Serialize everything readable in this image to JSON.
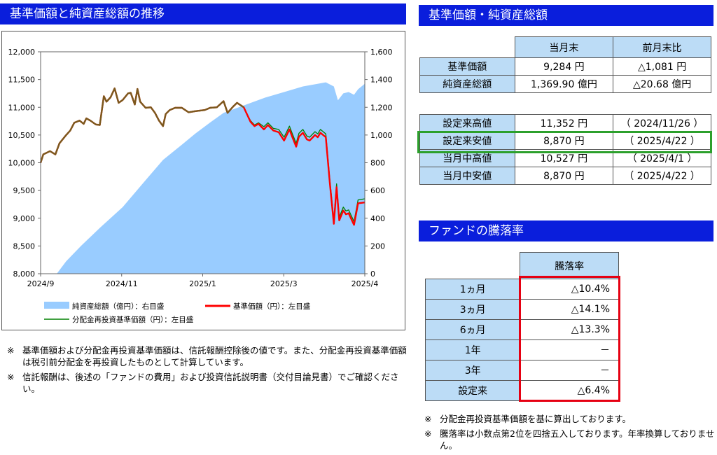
{
  "left_title": "基準価額と純資産総額の推移",
  "right_title": "基準価額・純資産総額",
  "perf_title": "ファンドの騰落率",
  "summary": {
    "headers": [
      "当月末",
      "前月末比"
    ],
    "rows": [
      {
        "label": "基準価額",
        "value": "9,284 円",
        "change": "△1,081 円"
      },
      {
        "label": "純資産総額",
        "value": "1,369.90 億円",
        "change": "△20.68 億円"
      }
    ]
  },
  "highs": [
    {
      "label": "設定来高値",
      "value": "11,352 円",
      "date": "（ 2024/11/26 ）"
    },
    {
      "label": "設定来安値",
      "value": "8,870 円",
      "date": "（ 2025/4/22 ）"
    },
    {
      "label": "当月中高値",
      "value": "10,527 円",
      "date": "（ 2025/4/1 ）"
    },
    {
      "label": "当月中安値",
      "value": "8,870 円",
      "date": "（ 2025/4/22 ）"
    }
  ],
  "performance": {
    "header": "騰落率",
    "rows": [
      {
        "label": "1ヵ月",
        "value": "△10.4%"
      },
      {
        "label": "3ヵ月",
        "value": "△14.1%"
      },
      {
        "label": "6ヵ月",
        "value": "△13.3%"
      },
      {
        "label": "1年",
        "value": "－"
      },
      {
        "label": "3年",
        "value": "－"
      },
      {
        "label": "設定来",
        "value": "△6.4%"
      }
    ]
  },
  "notes_left": [
    {
      "mark": "※",
      "text": "基準価額および分配金再投資基準価額は、信託報酬控除後の値です。また、分配金再投資基準価額は税引前分配金を再投資したものとして計算しています。"
    },
    {
      "mark": "※",
      "text": "信託報酬は、後述の「ファンドの費用」および投資信託説明書（交付目論見書）でご確認ください。"
    }
  ],
  "notes_right": [
    {
      "mark": "※",
      "text": "分配金再投資基準価額を基に算出しております。"
    },
    {
      "mark": "※",
      "text": "騰落率は小数点第2位を四捨五入しております。年率換算しておりません。"
    }
  ],
  "colors": {
    "header_bg": "#0a1edc",
    "cell_bg": "#bcdcf6",
    "area": "#99ccff",
    "nav_line": "#ff0000",
    "reinvest_line": "#008000",
    "highlight_green": "#2ca02c",
    "highlight_red": "#e60012"
  },
  "chart_data": {
    "type": "line",
    "x_ticks": [
      "2024/9",
      "2024/11",
      "2025/1",
      "2025/3",
      "2025/4"
    ],
    "y_left_ticks": [
      "8,000",
      "8,500",
      "9,000",
      "9,500",
      "10,000",
      "10,500",
      "11,000",
      "11,500",
      "12,000"
    ],
    "y_right_ticks": [
      "0",
      "200",
      "400",
      "600",
      "800",
      "1,000",
      "1,200",
      "1,400",
      "1,600"
    ],
    "ylim_left": [
      8000,
      12000
    ],
    "ylim_right": [
      0,
      1600
    ],
    "x_range": [
      "2024-09-01",
      "2025-04-30"
    ],
    "legend": [
      {
        "name": "純資産総額（億円）：右目盛",
        "kind": "area"
      },
      {
        "name": "基準価額（円）：左目盛",
        "kind": "line-red"
      },
      {
        "name": "分配金再投資基準価額（円）：左目盛",
        "kind": "line-green"
      }
    ],
    "series": [
      {
        "name": "純資産総額（億円）：右目盛",
        "axis": "right",
        "points": [
          [
            "2024-09-13",
            0
          ],
          [
            "2024-09-20",
            90
          ],
          [
            "2024-10-01",
            200
          ],
          [
            "2024-10-15",
            330
          ],
          [
            "2024-11-01",
            480
          ],
          [
            "2024-11-15",
            640
          ],
          [
            "2024-12-01",
            820
          ],
          [
            "2024-12-15",
            930
          ],
          [
            "2024-12-25",
            1010
          ],
          [
            "2025-01-05",
            1090
          ],
          [
            "2025-01-15",
            1160
          ],
          [
            "2025-02-01",
            1220
          ],
          [
            "2025-02-15",
            1270
          ],
          [
            "2025-03-01",
            1310
          ],
          [
            "2025-03-15",
            1350
          ],
          [
            "2025-04-01",
            1380
          ],
          [
            "2025-04-07",
            1350
          ],
          [
            "2025-04-10",
            1250
          ],
          [
            "2025-04-14",
            1300
          ],
          [
            "2025-04-18",
            1310
          ],
          [
            "2025-04-22",
            1290
          ],
          [
            "2025-04-25",
            1330
          ],
          [
            "2025-04-30",
            1370
          ]
        ]
      },
      {
        "name": "分配金再投資基準価額（円）：左目盛",
        "axis": "left",
        "points": [
          [
            "2024-09-01",
            10000
          ],
          [
            "2024-09-03",
            10150
          ],
          [
            "2024-09-08",
            10210
          ],
          [
            "2024-09-12",
            10150
          ],
          [
            "2024-09-15",
            10350
          ],
          [
            "2024-09-20",
            10500
          ],
          [
            "2024-09-23",
            10580
          ],
          [
            "2024-09-26",
            10720
          ],
          [
            "2024-09-30",
            10760
          ],
          [
            "2024-10-03",
            10700
          ],
          [
            "2024-10-05",
            10800
          ],
          [
            "2024-10-08",
            10760
          ],
          [
            "2024-10-12",
            10690
          ],
          [
            "2024-10-15",
            10680
          ],
          [
            "2024-10-18",
            11200
          ],
          [
            "2024-10-20",
            11100
          ],
          [
            "2024-10-23",
            11180
          ],
          [
            "2024-10-26",
            11340
          ],
          [
            "2024-10-29",
            11080
          ],
          [
            "2024-11-01",
            11130
          ],
          [
            "2024-11-05",
            11250
          ],
          [
            "2024-11-07",
            11260
          ],
          [
            "2024-11-10",
            11050
          ],
          [
            "2024-11-12",
            11330
          ],
          [
            "2024-11-14",
            11100
          ],
          [
            "2024-11-18",
            10990
          ],
          [
            "2024-11-22",
            11000
          ],
          [
            "2024-11-25",
            10900
          ],
          [
            "2024-11-28",
            10760
          ],
          [
            "2024-12-01",
            10660
          ],
          [
            "2024-12-03",
            10880
          ],
          [
            "2024-12-06",
            10950
          ],
          [
            "2024-12-10",
            10990
          ],
          [
            "2024-12-15",
            10990
          ],
          [
            "2024-12-20",
            10910
          ],
          [
            "2024-12-25",
            10930
          ],
          [
            "2025-01-01",
            10950
          ],
          [
            "2025-01-05",
            10990
          ],
          [
            "2025-01-10",
            11000
          ],
          [
            "2025-01-15",
            11110
          ],
          [
            "2025-01-18",
            10900
          ],
          [
            "2025-01-22",
            11010
          ],
          [
            "2025-01-25",
            11080
          ],
          [
            "2025-01-30",
            11000
          ],
          [
            "2025-02-04",
            10760
          ],
          [
            "2025-02-07",
            10680
          ],
          [
            "2025-02-10",
            10720
          ],
          [
            "2025-02-14",
            10650
          ],
          [
            "2025-02-17",
            10720
          ],
          [
            "2025-02-21",
            10620
          ],
          [
            "2025-02-25",
            10600
          ],
          [
            "2025-03-01",
            10460
          ],
          [
            "2025-03-05",
            10660
          ],
          [
            "2025-03-07",
            10530
          ],
          [
            "2025-03-10",
            10350
          ],
          [
            "2025-03-12",
            10530
          ],
          [
            "2025-03-15",
            10600
          ],
          [
            "2025-03-18",
            10480
          ],
          [
            "2025-03-20",
            10460
          ],
          [
            "2025-03-24",
            10560
          ],
          [
            "2025-03-26",
            10520
          ],
          [
            "2025-03-28",
            10600
          ],
          [
            "2025-04-01",
            10520
          ],
          [
            "2025-04-04",
            9700
          ],
          [
            "2025-04-07",
            8960
          ],
          [
            "2025-04-09",
            9620
          ],
          [
            "2025-04-11",
            9020
          ],
          [
            "2025-04-14",
            9200
          ],
          [
            "2025-04-16",
            9130
          ],
          [
            "2025-04-18",
            9150
          ],
          [
            "2025-04-22",
            8940
          ],
          [
            "2025-04-25",
            9330
          ],
          [
            "2025-04-30",
            9350
          ]
        ]
      },
      {
        "name": "基準価額（円）：左目盛",
        "axis": "left",
        "points": [
          [
            "2024-09-01",
            10000
          ],
          [
            "2024-09-03",
            10150
          ],
          [
            "2024-09-08",
            10210
          ],
          [
            "2024-09-12",
            10150
          ],
          [
            "2024-09-15",
            10350
          ],
          [
            "2024-09-20",
            10500
          ],
          [
            "2024-09-23",
            10580
          ],
          [
            "2024-09-26",
            10720
          ],
          [
            "2024-09-30",
            10760
          ],
          [
            "2024-10-03",
            10700
          ],
          [
            "2024-10-05",
            10800
          ],
          [
            "2024-10-08",
            10760
          ],
          [
            "2024-10-12",
            10690
          ],
          [
            "2024-10-15",
            10680
          ],
          [
            "2024-10-18",
            11200
          ],
          [
            "2024-10-20",
            11100
          ],
          [
            "2024-10-23",
            11180
          ],
          [
            "2024-10-26",
            11340
          ],
          [
            "2024-10-29",
            11080
          ],
          [
            "2024-11-01",
            11130
          ],
          [
            "2024-11-05",
            11250
          ],
          [
            "2024-11-07",
            11260
          ],
          [
            "2024-11-10",
            11050
          ],
          [
            "2024-11-12",
            11330
          ],
          [
            "2024-11-14",
            11100
          ],
          [
            "2024-11-18",
            10990
          ],
          [
            "2024-11-22",
            11000
          ],
          [
            "2024-11-25",
            10900
          ],
          [
            "2024-11-28",
            10760
          ],
          [
            "2024-12-01",
            10660
          ],
          [
            "2024-12-03",
            10880
          ],
          [
            "2024-12-06",
            10950
          ],
          [
            "2024-12-10",
            10990
          ],
          [
            "2024-12-15",
            10990
          ],
          [
            "2024-12-20",
            10910
          ],
          [
            "2024-12-25",
            10930
          ],
          [
            "2025-01-01",
            10950
          ],
          [
            "2025-01-05",
            10990
          ],
          [
            "2025-01-10",
            11000
          ],
          [
            "2025-01-15",
            11110
          ],
          [
            "2025-01-18",
            10900
          ],
          [
            "2025-01-22",
            11010
          ],
          [
            "2025-01-25",
            11080
          ],
          [
            "2025-01-30",
            11000
          ],
          [
            "2025-02-04",
            10740
          ],
          [
            "2025-02-07",
            10660
          ],
          [
            "2025-02-10",
            10700
          ],
          [
            "2025-02-14",
            10600
          ],
          [
            "2025-02-17",
            10680
          ],
          [
            "2025-02-21",
            10580
          ],
          [
            "2025-02-25",
            10550
          ],
          [
            "2025-03-01",
            10400
          ],
          [
            "2025-03-05",
            10600
          ],
          [
            "2025-03-07",
            10470
          ],
          [
            "2025-03-10",
            10290
          ],
          [
            "2025-03-12",
            10470
          ],
          [
            "2025-03-15",
            10540
          ],
          [
            "2025-03-18",
            10420
          ],
          [
            "2025-03-20",
            10400
          ],
          [
            "2025-03-24",
            10500
          ],
          [
            "2025-03-26",
            10460
          ],
          [
            "2025-03-28",
            10540
          ],
          [
            "2025-04-01",
            10460
          ],
          [
            "2025-04-04",
            9640
          ],
          [
            "2025-04-07",
            8900
          ],
          [
            "2025-04-09",
            9560
          ],
          [
            "2025-04-11",
            8960
          ],
          [
            "2025-04-14",
            9140
          ],
          [
            "2025-04-16",
            9070
          ],
          [
            "2025-04-18",
            9090
          ],
          [
            "2025-04-22",
            8880
          ],
          [
            "2025-04-25",
            9270
          ],
          [
            "2025-04-30",
            9284
          ]
        ]
      }
    ]
  }
}
